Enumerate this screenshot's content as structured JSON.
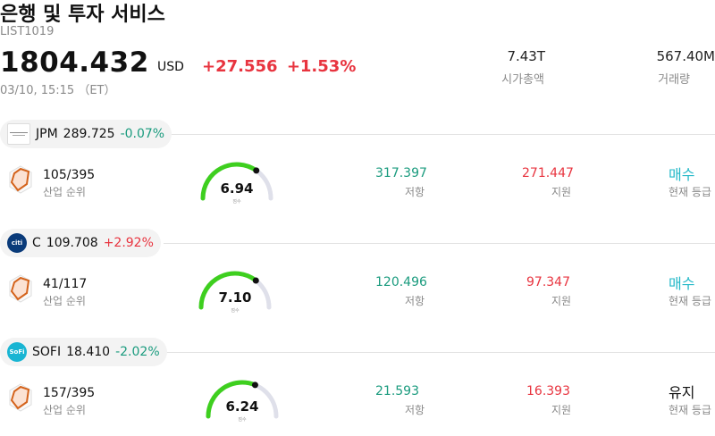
{
  "header": {
    "title": "은행 및 투자 서비스",
    "code": "LIST1019",
    "price": "1804.432",
    "currency": "USD",
    "change_abs": "+27.556",
    "change_pct": "+1.53%",
    "timestamp": "03/10, 15:15 （ET）",
    "market_cap_value": "7.43T",
    "market_cap_label": "시가총액",
    "volume_value": "567.40M",
    "volume_label": "거래량"
  },
  "colors": {
    "positive": "#e8343f",
    "negative": "#1a9b7e",
    "buy": "#23b8c8",
    "gauge_green": "#3ecf1f",
    "gauge_track": "#dfe0ea"
  },
  "stocks": [
    {
      "ticker": "JPM",
      "price": "289.725",
      "change": "-0.07%",
      "direction": "negative",
      "logo_icon": "jpmorgan-logo",
      "rank": "105/395",
      "rank_label": "산업 순위",
      "score": "6.94",
      "score_label": "점수",
      "score_fraction": 0.694,
      "resistance": "317.397",
      "resistance_label": "저항",
      "support": "271.447",
      "support_label": "지원",
      "rating": "매수",
      "rating_label": "현재 등급"
    },
    {
      "ticker": "C",
      "price": "109.708",
      "change": "+2.92%",
      "direction": "positive",
      "logo_icon": "citi-logo",
      "logo_text": "citi",
      "rank": "41/117",
      "rank_label": "산업 순위",
      "score": "7.10",
      "score_label": "점수",
      "score_fraction": 0.71,
      "resistance": "120.496",
      "resistance_label": "저항",
      "support": "97.347",
      "support_label": "지원",
      "rating": "매수",
      "rating_label": "현재 등급"
    },
    {
      "ticker": "SOFI",
      "price": "18.410",
      "change": "-2.02%",
      "direction": "negative",
      "logo_icon": "sofi-logo",
      "logo_text": "SoFi",
      "rank": "157/395",
      "rank_label": "산업 순위",
      "score": "6.24",
      "score_label": "점수",
      "score_fraction": 0.624,
      "resistance": "21.593",
      "resistance_label": "저항",
      "support": "16.393",
      "support_label": "지원",
      "rating": "유지",
      "rating_label": "현재 등급"
    }
  ]
}
